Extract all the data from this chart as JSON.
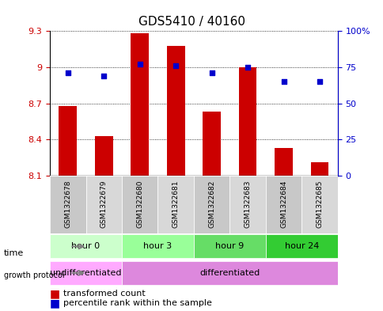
{
  "title": "GDS5410 / 40160",
  "samples": [
    "GSM1322678",
    "GSM1322679",
    "GSM1322680",
    "GSM1322681",
    "GSM1322682",
    "GSM1322683",
    "GSM1322684",
    "GSM1322685"
  ],
  "transformed_counts": [
    8.68,
    8.43,
    9.28,
    9.18,
    8.63,
    9.0,
    8.33,
    8.21
  ],
  "percentile_ranks": [
    71,
    69,
    77,
    76,
    71,
    75,
    65,
    65
  ],
  "ylim_left": [
    8.1,
    9.3
  ],
  "ylim_right": [
    0,
    100
  ],
  "yticks_left": [
    8.1,
    8.4,
    8.7,
    9.0,
    9.3
  ],
  "ytick_labels_left": [
    "8.1",
    "8.4",
    "8.7",
    "9",
    "9.3"
  ],
  "yticks_right": [
    0,
    25,
    50,
    75,
    100
  ],
  "ytick_labels_right": [
    "0",
    "25",
    "50",
    "75",
    "100%"
  ],
  "bar_color": "#cc0000",
  "dot_color": "#0000cc",
  "bar_bottom": 8.1,
  "time_groups": [
    {
      "label": "hour 0",
      "samples": [
        0,
        1
      ],
      "color": "#ccffcc"
    },
    {
      "label": "hour 3",
      "samples": [
        2,
        3
      ],
      "color": "#99ff99"
    },
    {
      "label": "hour 9",
      "samples": [
        4,
        5
      ],
      "color": "#66dd66"
    },
    {
      "label": "hour 24",
      "samples": [
        6,
        7
      ],
      "color": "#33cc33"
    }
  ],
  "growth_groups": [
    {
      "label": "undifferentiated",
      "samples": [
        0,
        1
      ],
      "color": "#ffaaff"
    },
    {
      "label": "differentiated",
      "samples": [
        2,
        7
      ],
      "color": "#dd88dd"
    }
  ],
  "legend_bar_label": "transformed count",
  "legend_dot_label": "percentile rank within the sample",
  "dotted_line_color": "#000000",
  "axis_line_color": "#000000",
  "bg_color": "#ffffff",
  "plot_bg_color": "#ffffff",
  "grid_color": "#aaaaaa"
}
